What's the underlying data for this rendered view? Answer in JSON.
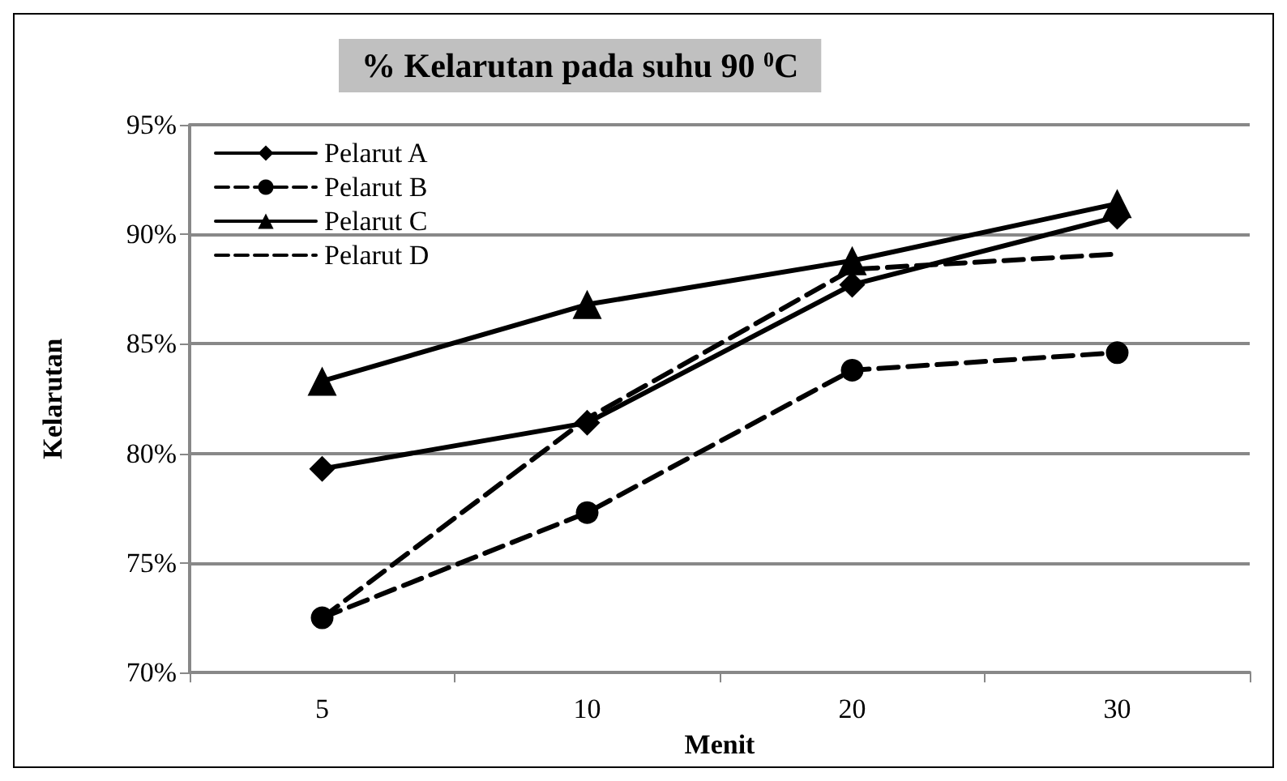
{
  "chart_data": {
    "type": "line",
    "title": "% Kelarutan pada suhu 90 $^{0}$C",
    "xlabel": "Menit",
    "ylabel": "Kelarutan",
    "categories": [
      "5",
      "10",
      "20",
      "30"
    ],
    "series": [
      {
        "name": "Pelarut A",
        "color": "#000000",
        "marker": "diamond",
        "line_style": "solid",
        "values": [
          79.3,
          81.4,
          87.7,
          90.8
        ]
      },
      {
        "name": "Pelarut B",
        "color": "#000000",
        "marker": "circle",
        "line_style": "dashed",
        "values": [
          72.5,
          77.3,
          83.8,
          84.6
        ]
      },
      {
        "name": "Pelarut C",
        "color": "#000000",
        "marker": "triangle",
        "line_style": "solid",
        "values": [
          83.3,
          86.8,
          88.8,
          91.4
        ]
      },
      {
        "name": "Pelarut D",
        "color": "#000000",
        "marker": "none",
        "line_style": "dashed",
        "values": [
          72.5,
          81.6,
          88.4,
          89.1
        ]
      }
    ],
    "ylim": [
      70,
      95
    ],
    "yticks": [
      {
        "value": 70,
        "label": "70%"
      },
      {
        "value": 75,
        "label": "75%"
      },
      {
        "value": 80,
        "label": "80%"
      },
      {
        "value": 85,
        "label": "85%"
      },
      {
        "value": 90,
        "label": "90%"
      },
      {
        "value": 95,
        "label": "95%"
      }
    ],
    "grid": "y",
    "legend": "top left"
  }
}
